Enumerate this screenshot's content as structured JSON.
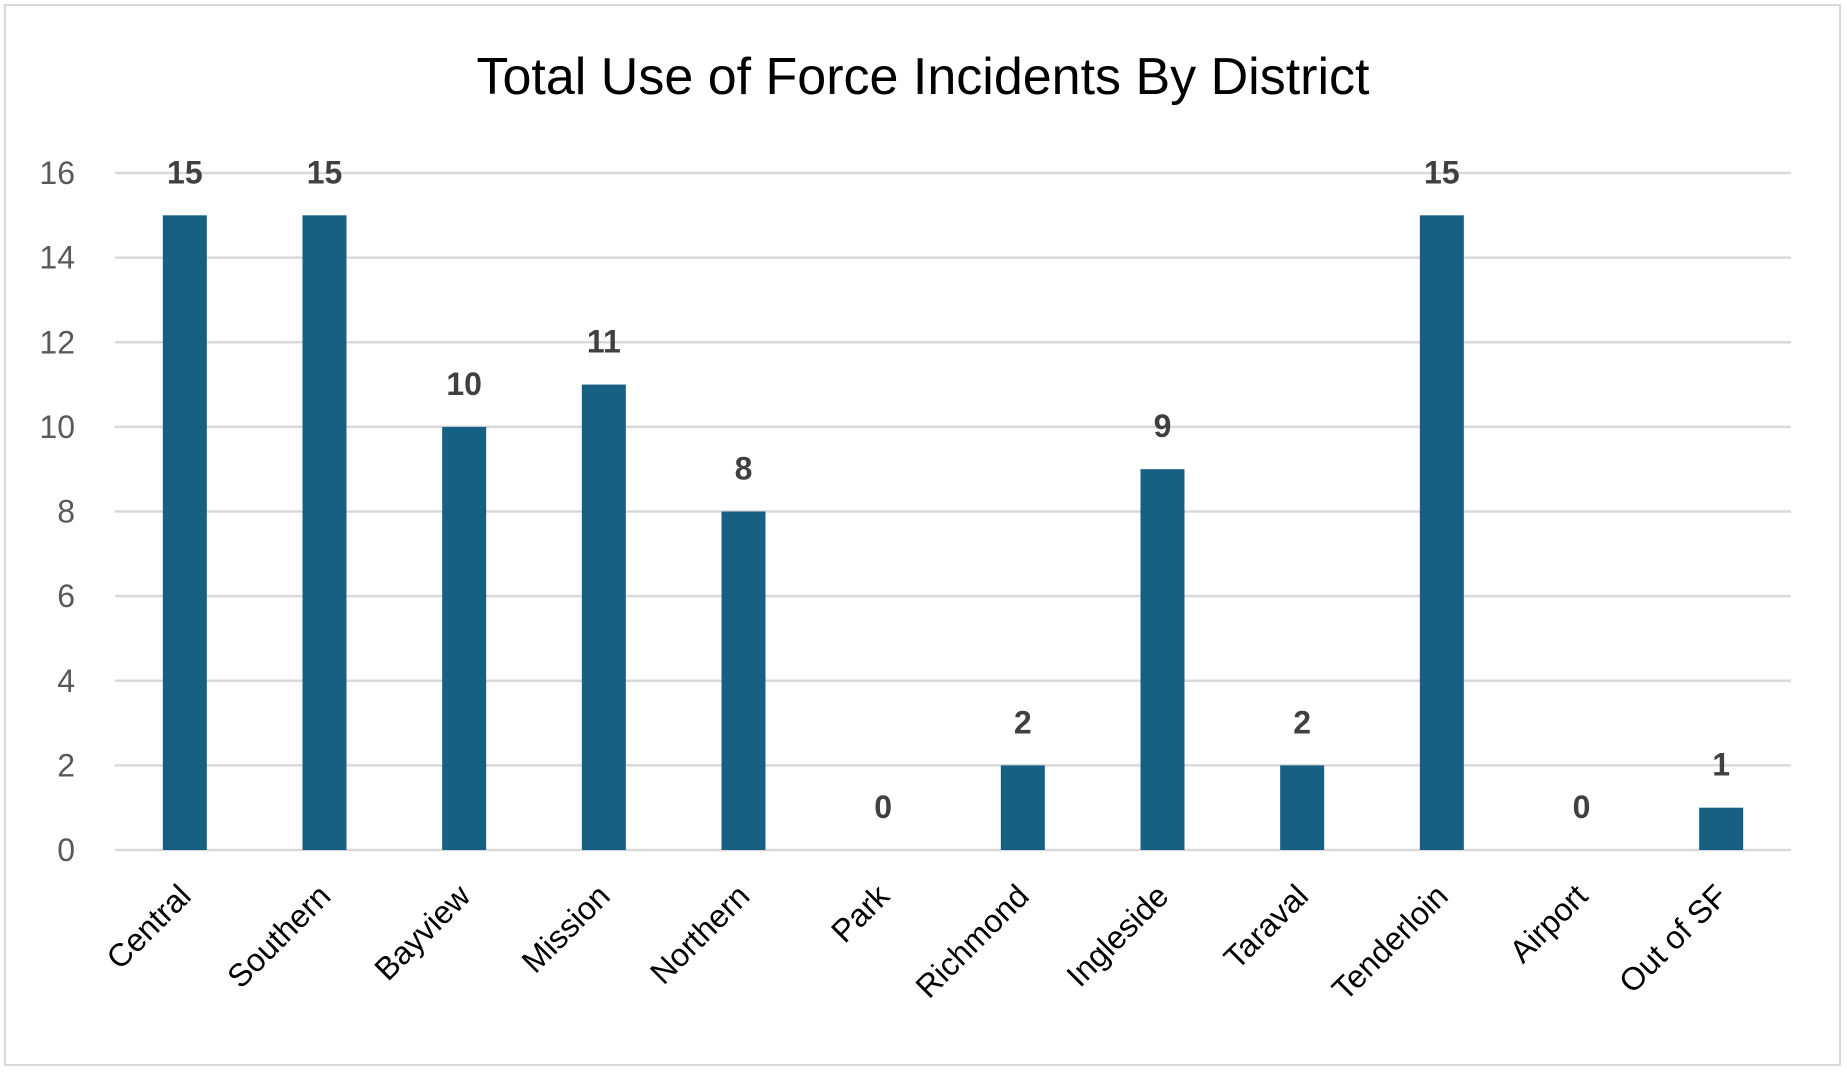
{
  "chart_data": {
    "type": "bar",
    "title": "Total Use of Force Incidents By District",
    "xlabel": "",
    "ylabel": "",
    "categories": [
      "Central",
      "Southern",
      "Bayview",
      "Mission",
      "Northern",
      "Park",
      "Richmond",
      "Ingleside",
      "Taraval",
      "Tenderloin",
      "Airport",
      "Out of SF"
    ],
    "values": [
      15,
      15,
      10,
      11,
      8,
      0,
      2,
      9,
      2,
      15,
      0,
      1
    ],
    "ylim": [
      0,
      16
    ],
    "yticks": [
      0,
      2,
      4,
      6,
      8,
      10,
      12,
      14,
      16
    ],
    "grid": true,
    "data_labels": true,
    "legend": "none",
    "colors": {
      "bar": "#176083",
      "grid": "#d9d9d9",
      "data_label": "#404040",
      "tick": "#595959"
    }
  }
}
